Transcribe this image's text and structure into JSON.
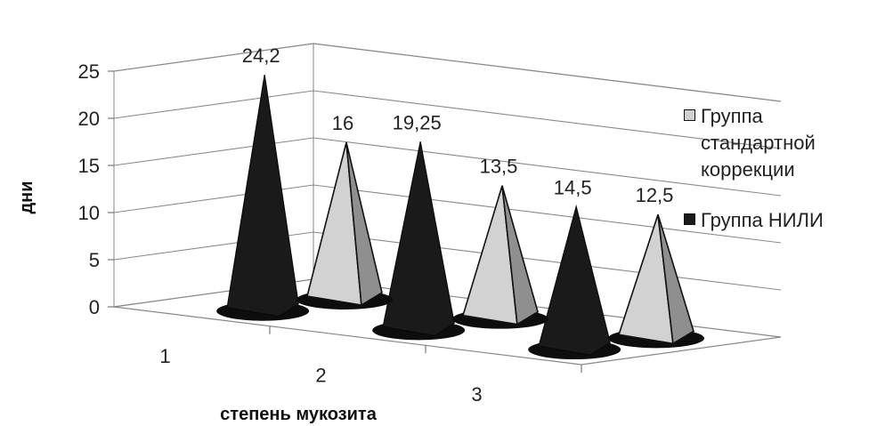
{
  "chart_data": {
    "type": "bar",
    "shape": "3d-pyramid",
    "categories": [
      "1",
      "2",
      "3"
    ],
    "series": [
      {
        "name": "Группа стандартной коррекции",
        "values": [
          16,
          13.5,
          12.5
        ],
        "value_labels": [
          "16",
          "13,5",
          "12,5"
        ],
        "color": "#d0d0d0"
      },
      {
        "name": "Группа НИЛИ",
        "values": [
          24.2,
          19.25,
          14.5
        ],
        "value_labels": [
          "24,2",
          "19,25",
          "14,5"
        ],
        "color": "#1a1a1a"
      }
    ],
    "xlabel": "степень мукозита",
    "ylabel": "дни",
    "ylim": [
      0,
      25
    ],
    "yticks": [
      "0",
      "5",
      "10",
      "15",
      "20",
      "25"
    ],
    "grid": true,
    "legend_position": "right"
  }
}
